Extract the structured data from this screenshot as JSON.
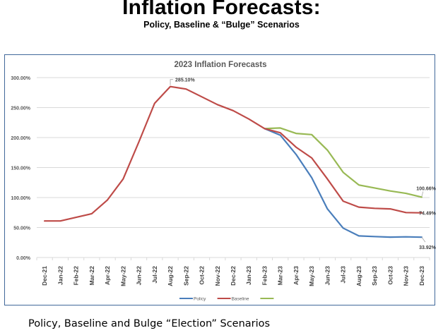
{
  "page": {
    "title": "Inflation Forecasts:",
    "subtitle": "Policy, Baseline & “Bulge” Scenarios",
    "caption": "Policy, Baseline and Bulge “Election”  Scenarios"
  },
  "chart_data": {
    "type": "line",
    "title": "2023 Inflation Forecasts",
    "xlabel": "",
    "ylabel": "",
    "ylim": [
      0,
      300
    ],
    "y_ticks": [
      "0.00%",
      "50.00%",
      "100.00%",
      "150.00%",
      "200.00%",
      "250.00%",
      "300.00%"
    ],
    "y_tick_values": [
      0,
      50,
      100,
      150,
      200,
      250,
      300
    ],
    "grid": true,
    "legend_position": "bottom",
    "categories": [
      "Dec-21",
      "Jan-22",
      "Feb-22",
      "Mar-22",
      "Apr-22",
      "May-22",
      "Jun-22",
      "Jul-22",
      "Aug-22",
      "Sep-22",
      "Oct-22",
      "Nov-22",
      "Dec-22",
      "Jan-23",
      "Feb-23",
      "Mar-23",
      "Apr-23",
      "May-23",
      "Jun-23",
      "Jul-23",
      "Aug-23",
      "Sep-23",
      "Oct-23",
      "Nov-23",
      "Dec-23"
    ],
    "series": [
      {
        "name": "Policy",
        "color": "#4a7ebb",
        "values": [
          null,
          null,
          null,
          null,
          null,
          null,
          null,
          null,
          null,
          null,
          null,
          null,
          null,
          null,
          215,
          204,
          172,
          133,
          81,
          49,
          36,
          35,
          34,
          34.5,
          33.92
        ]
      },
      {
        "name": "Baseline",
        "color": "#be4b48",
        "values": [
          61,
          61,
          67,
          73,
          96,
          131,
          193,
          257,
          285.1,
          281,
          268,
          255,
          245,
          231,
          215,
          208,
          184,
          166,
          131,
          94,
          84,
          82,
          81,
          75,
          74.49
        ]
      },
      {
        "name": "",
        "color": "#98b954",
        "values": [
          null,
          null,
          null,
          null,
          null,
          null,
          null,
          null,
          null,
          null,
          null,
          null,
          null,
          null,
          215,
          216,
          207,
          205,
          179,
          142,
          121,
          116,
          111,
          107,
          100.66
        ]
      }
    ],
    "annotations": [
      {
        "series": "Baseline",
        "category": "Aug-22",
        "text": "285.10%"
      },
      {
        "series": "",
        "category": "Dec-23",
        "text": "100.66%"
      },
      {
        "series": "Baseline",
        "category": "Dec-23",
        "text": "74.49%"
      },
      {
        "series": "Policy",
        "category": "Dec-23",
        "text": "33.92%"
      }
    ]
  }
}
